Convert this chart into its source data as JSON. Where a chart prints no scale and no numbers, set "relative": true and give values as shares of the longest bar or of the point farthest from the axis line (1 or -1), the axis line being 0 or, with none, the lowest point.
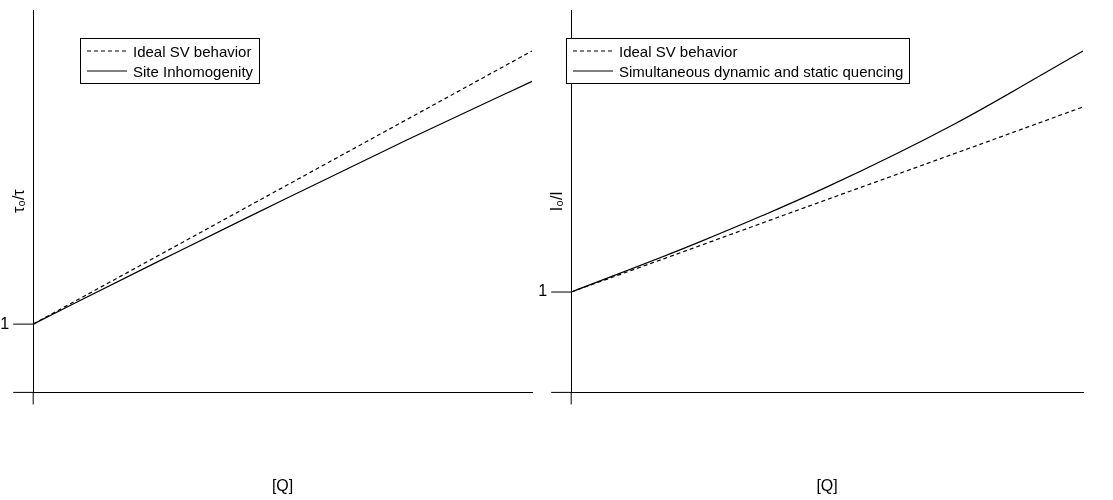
{
  "chart_data": [
    {
      "type": "line",
      "relative": true,
      "xlabel": "[Q]",
      "ylabel": "τ₀/τ",
      "categories": [
        null,
        null,
        null,
        null,
        null
      ],
      "legend": "top left",
      "marker": "none",
      "grid": false,
      "annotations": [
        "1"
      ],
      "series": [
        {
          "name": "Ideal SV behavior",
          "color": "#000000",
          "line_style": "dashed",
          "values": [
            0.2,
            0.4,
            0.6,
            0.8,
            1.0
          ]
        },
        {
          "name": "Site Inhomogenity",
          "color": "#000000",
          "line_style": "solid",
          "values": [
            0.2,
            0.383,
            0.563,
            0.74,
            0.911
          ]
        }
      ]
    },
    {
      "type": "line",
      "relative": true,
      "xlabel": "[Q]",
      "ylabel": "I₀/I",
      "categories": [
        null,
        null,
        null,
        null,
        null
      ],
      "legend": "top left",
      "marker": "none",
      "grid": false,
      "annotations": [
        "1"
      ],
      "series": [
        {
          "name": "Ideal SV behavior",
          "color": "#000000",
          "line_style": "dashed",
          "values": [
            0.294,
            0.429,
            0.565,
            0.7,
            0.836
          ]
        },
        {
          "name": "Simultaneous dynamic and static quencing",
          "color": "#000000",
          "line_style": "solid",
          "values": [
            0.294,
            0.44,
            0.602,
            0.787,
            1.0
          ]
        }
      ]
    }
  ]
}
